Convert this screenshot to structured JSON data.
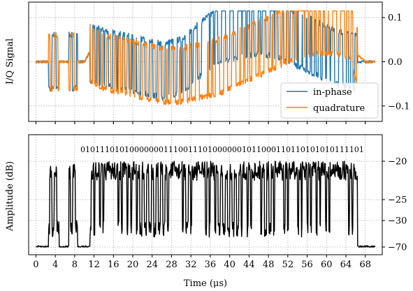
{
  "chart_data": [
    {
      "type": "line",
      "ylabel": "I/Q Signal",
      "xlim": [
        -1.5,
        71.5
      ],
      "ylim": [
        -0.135,
        0.135
      ],
      "x_ticks": [
        0,
        4,
        8,
        12,
        16,
        20,
        24,
        28,
        32,
        36,
        40,
        44,
        48,
        52,
        56,
        60,
        64,
        68
      ],
      "y_ticks": [
        -0.1,
        0.0,
        0.1
      ],
      "y_tick_labels": [
        "−0.1",
        "0.0",
        "0.1"
      ],
      "y_axis_side": "right",
      "grid": true,
      "legend": "bottom-right",
      "bits": "0101110101000000011100111010000001011000110110101010111101",
      "series": [
        {
          "name": "in-phase",
          "color": "#1f77b4",
          "x": [
            0,
            3,
            8,
            10,
            11,
            14,
            18,
            22,
            26,
            30,
            34,
            38,
            42,
            46,
            50,
            54,
            58,
            62,
            65,
            66,
            68,
            70
          ],
          "y": [
            0.0,
            0.0,
            0.0,
            0.0,
            0.02,
            0.01,
            0.0,
            -0.01,
            -0.02,
            -0.01,
            0.03,
            0.06,
            0.07,
            0.08,
            0.07,
            0.05,
            0.03,
            0.01,
            0.0,
            0.0,
            0.0,
            0.0
          ]
        },
        {
          "name": "quadrature",
          "color": "#ff7f0e",
          "x": [
            0,
            3,
            8,
            10,
            11,
            14,
            18,
            22,
            26,
            30,
            34,
            38,
            42,
            46,
            50,
            54,
            58,
            62,
            65,
            66,
            68,
            70
          ],
          "y": [
            0.0,
            0.0,
            0.0,
            0.0,
            0.02,
            0.0,
            -0.01,
            -0.02,
            -0.03,
            -0.03,
            -0.02,
            -0.01,
            0.01,
            0.03,
            0.05,
            0.07,
            0.08,
            0.08,
            0.07,
            0.02,
            0.0,
            0.0
          ]
        }
      ]
    },
    {
      "type": "line",
      "xlabel": "Time (μs)",
      "ylabel": "Amplitude (dB)",
      "xlim": [
        -1.5,
        71.5
      ],
      "x_ticks": [
        0,
        4,
        8,
        12,
        16,
        20,
        24,
        28,
        32,
        36,
        40,
        44,
        48,
        52,
        56,
        60,
        64,
        68
      ],
      "y_ticks": [
        -20,
        -25,
        -30,
        -70
      ],
      "y_tick_labels": [
        "−20",
        "−25",
        "−30",
        "−70"
      ],
      "y_axis_side": "right",
      "grid": true,
      "series": [
        {
          "name": "",
          "color": "#000000",
          "x": [
            0,
            3,
            8,
            11,
            14,
            18,
            22,
            26,
            30,
            34,
            38,
            42,
            46,
            50,
            54,
            58,
            62,
            66,
            67,
            70
          ],
          "y": [
            -70,
            -70,
            -70,
            -20,
            -20,
            -20,
            -20,
            -20,
            -20,
            -20,
            -20,
            -20,
            -20,
            -20,
            -20,
            -20,
            -20,
            -20,
            -70,
            -70
          ]
        }
      ]
    }
  ]
}
